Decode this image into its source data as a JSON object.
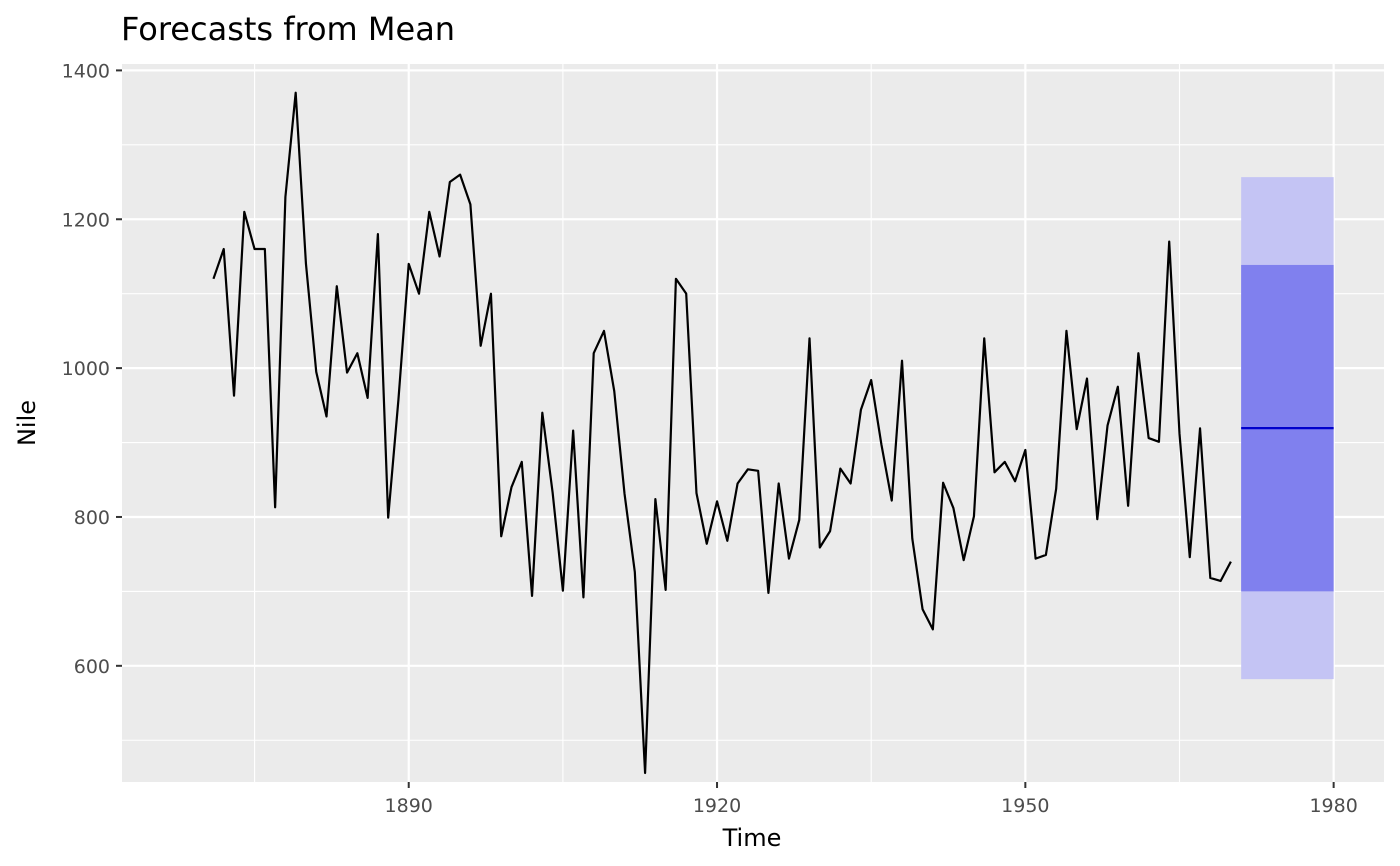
{
  "chart_data": {
    "type": "line",
    "title": "Forecasts from Mean",
    "xlabel": "Time",
    "ylabel": "Nile",
    "xlim": [
      1862.1,
      1984.9
    ],
    "ylim": [
      443.9,
      1408.6
    ],
    "x_ticks": [
      1890,
      1920,
      1950,
      1980
    ],
    "y_ticks": [
      600,
      800,
      1000,
      1200,
      1400
    ],
    "grid": true,
    "legend": "none",
    "series": [
      {
        "x_start": 1871,
        "x_step": 1,
        "values": [
          1120,
          1160,
          963,
          1210,
          1160,
          1160,
          813,
          1230,
          1370,
          1140,
          995,
          935,
          1110,
          994,
          1020,
          960,
          1180,
          799,
          958,
          1140,
          1100,
          1210,
          1150,
          1250,
          1260,
          1220,
          1030,
          1100,
          774,
          840,
          874,
          694,
          940,
          833,
          701,
          916,
          692,
          1020,
          1050,
          969,
          831,
          726,
          456,
          824,
          702,
          1120,
          1100,
          832,
          764,
          821,
          768,
          845,
          864,
          862,
          698,
          845,
          744,
          796,
          1040,
          759,
          781,
          865,
          845,
          944,
          984,
          897,
          822,
          1010,
          771,
          676,
          649,
          846,
          812,
          742,
          801,
          1040,
          860,
          874,
          848,
          890,
          744,
          749,
          838,
          1050,
          918,
          986,
          797,
          923,
          975,
          815,
          1020,
          906,
          901,
          1170,
          912,
          746,
          919,
          718,
          714,
          740
        ]
      }
    ],
    "forecast": {
      "x_start": 1971,
      "x_end": 1980,
      "mean": 919.35,
      "lo80": 700.1,
      "hi80": 1138.6,
      "lo95": 582.1,
      "hi95": 1256.6
    },
    "colors": {
      "panel": "#ebebeb",
      "grid_major": "#ffffff",
      "line": "#000000",
      "band95": "#c4c4f4",
      "band80": "#8080ee",
      "mean_line": "#0000cc",
      "tick_mark": "#333333"
    }
  }
}
